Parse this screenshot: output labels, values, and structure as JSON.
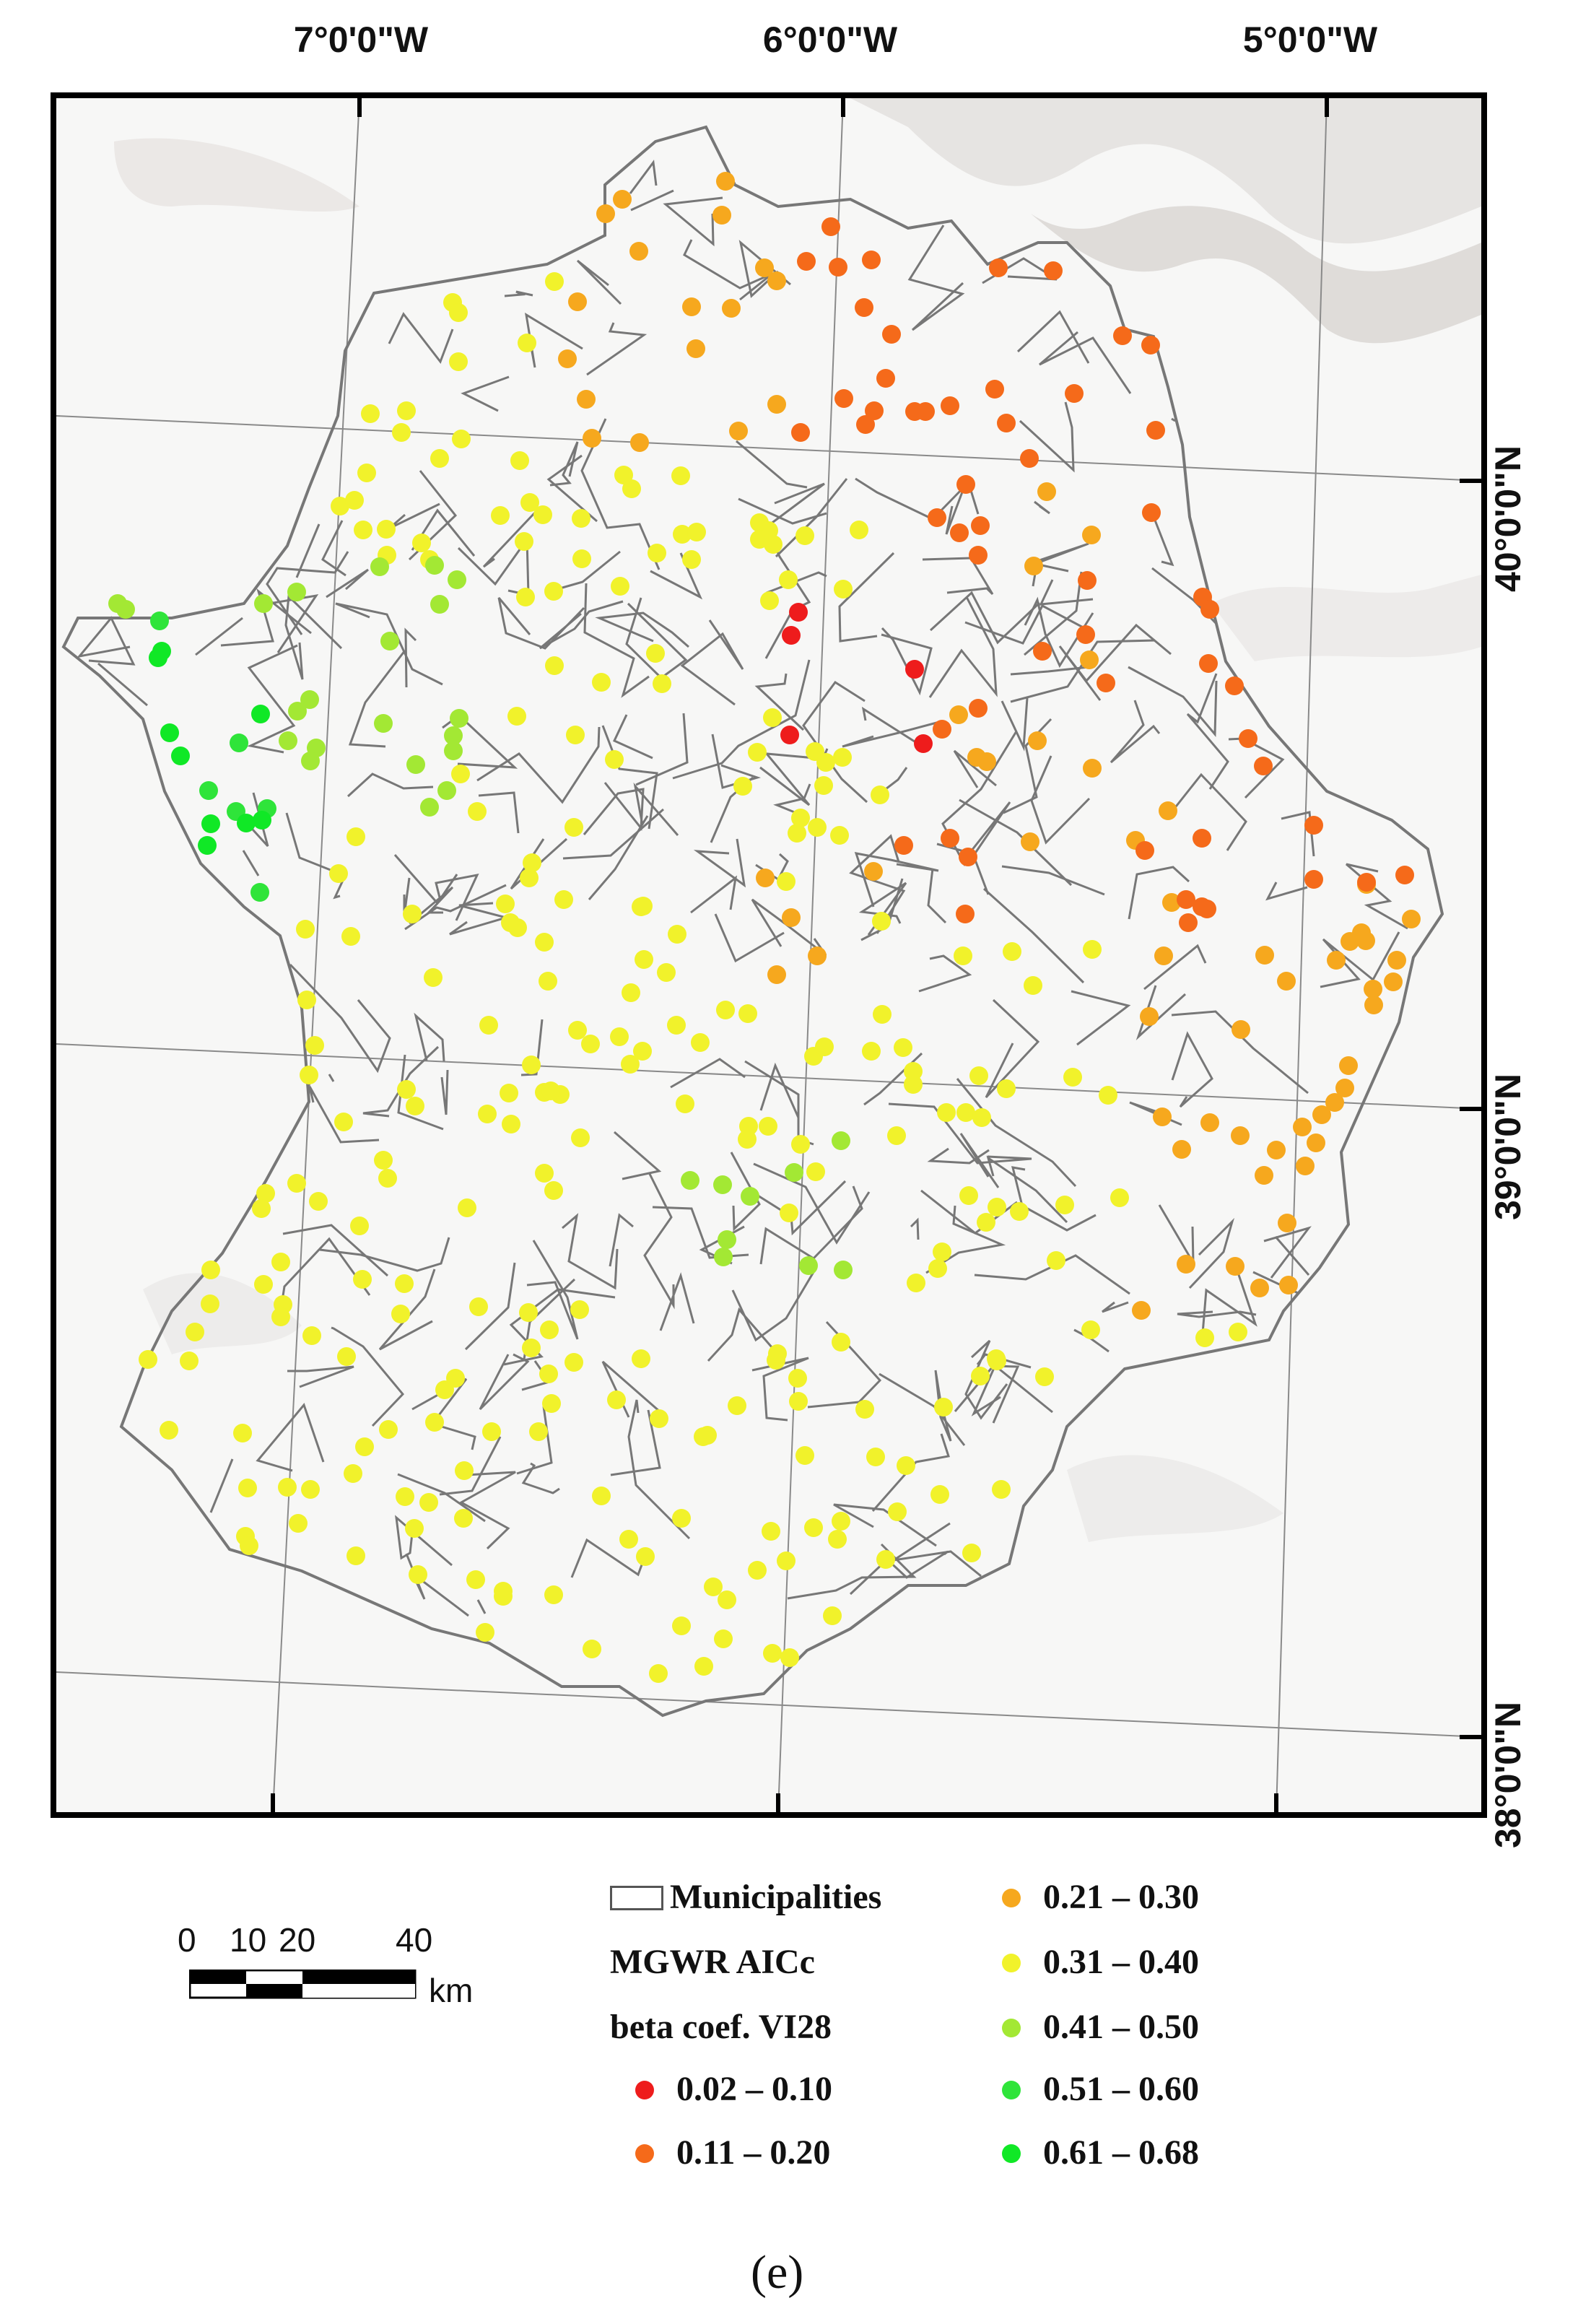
{
  "coordinates": {
    "top": [
      "7°0'0\"W",
      "6°0'0\"W",
      "5°0'0\"W"
    ],
    "right": [
      "40°0'0\"N",
      "39°0'0\"N",
      "38°0'0\"N"
    ]
  },
  "legend": {
    "municipalities_label": "Municipalities",
    "title_line1": "MGWR AICc",
    "title_line2": "beta coef. VI28",
    "classes": [
      {
        "label": "0.02 – 0.10",
        "color": "#ee1c1c"
      },
      {
        "label": "0.11 – 0.20",
        "color": "#f56a1a"
      },
      {
        "label": "0.21 – 0.30",
        "color": "#f6a81e"
      },
      {
        "label": "0.31 – 0.40",
        "color": "#f1f22b"
      },
      {
        "label": "0.41 – 0.50",
        "color": "#a3e834"
      },
      {
        "label": "0.51 – 0.60",
        "color": "#2fe43a"
      },
      {
        "label": "0.61 – 0.68",
        "color": "#10e826"
      }
    ]
  },
  "scale_bar": {
    "labels": [
      "0",
      "10",
      "20",
      "40"
    ],
    "unit": "km"
  },
  "panel_label": "(e)",
  "colors": {
    "frame": "#000000",
    "boundary": "#777777",
    "relief": "#d9d5d2"
  }
}
